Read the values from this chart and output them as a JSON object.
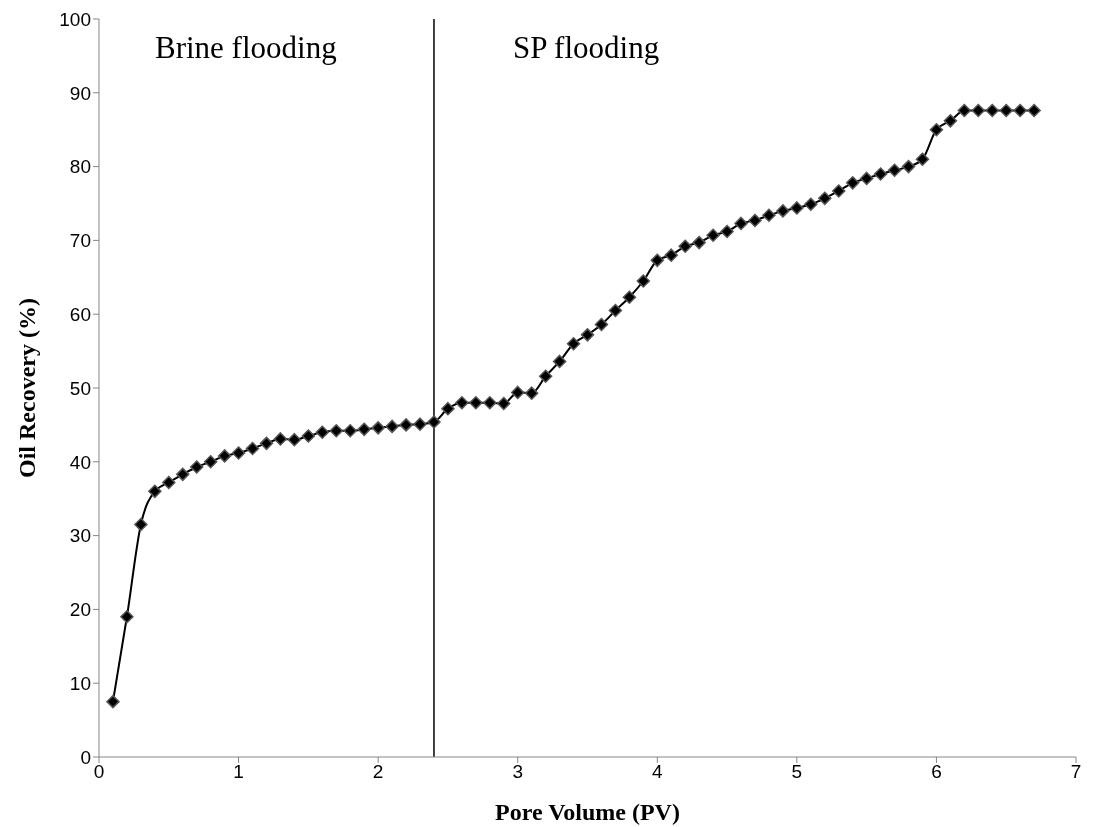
{
  "chart_data": {
    "type": "line",
    "xlabel": "Pore Volume (PV)",
    "ylabel": "Oil Recovery (%)",
    "x": [
      0.1,
      0.2,
      0.3,
      0.4,
      0.5,
      0.6,
      0.7,
      0.8,
      0.9,
      1.0,
      1.1,
      1.2,
      1.3,
      1.4,
      1.5,
      1.6,
      1.7,
      1.8,
      1.9,
      2.0,
      2.1,
      2.2,
      2.3,
      2.4,
      2.5,
      2.6,
      2.7,
      2.8,
      2.9,
      3.0,
      3.1,
      3.2,
      3.3,
      3.4,
      3.5,
      3.6,
      3.7,
      3.8,
      3.9,
      4.0,
      4.1,
      4.2,
      4.3,
      4.4,
      4.5,
      4.6,
      4.7,
      4.8,
      4.9,
      5.0,
      5.1,
      5.2,
      5.3,
      5.4,
      5.5,
      5.6,
      5.7,
      5.8,
      5.9,
      6.0,
      6.1,
      6.2,
      6.3,
      6.4,
      6.5,
      6.6,
      6.7
    ],
    "series": [
      {
        "color": "#000000",
        "values": [
          7.5,
          19,
          31.5,
          36,
          37.2,
          38.3,
          39.3,
          40,
          40.8,
          41.2,
          41.8,
          42.5,
          43.1,
          43,
          43.5,
          44,
          44.2,
          44.2,
          44.4,
          44.6,
          44.8,
          45,
          45.1,
          45.4,
          47.2,
          48,
          48,
          48,
          47.9,
          49.4,
          49.3,
          51.6,
          53.6,
          56,
          57.2,
          58.6,
          60.5,
          62.3,
          64.5,
          67.3,
          68,
          69.2,
          69.7,
          70.7,
          71.2,
          72.3,
          72.7,
          73.4,
          74,
          74.4,
          74.9,
          75.7,
          76.7,
          77.8,
          78.4,
          79,
          79.5,
          80,
          81,
          85,
          86.2,
          87.6,
          87.6,
          87.6,
          87.6,
          87.6,
          87.6
        ]
      }
    ],
    "xlim": [
      0,
      7
    ],
    "xticks": [
      0,
      1,
      2,
      3,
      4,
      5,
      6,
      7
    ],
    "ylim": [
      0,
      100
    ],
    "yticks": [
      0,
      10,
      20,
      30,
      40,
      50,
      60,
      70,
      80,
      90,
      100
    ],
    "grid": false,
    "legend": false,
    "marker": "diamond",
    "line_style": "solid",
    "ref_lines": [
      {
        "axis": "x",
        "value": 2.4,
        "color": "#000000"
      }
    ],
    "annotations": [
      "Brine flooding",
      "SP flooding"
    ]
  }
}
